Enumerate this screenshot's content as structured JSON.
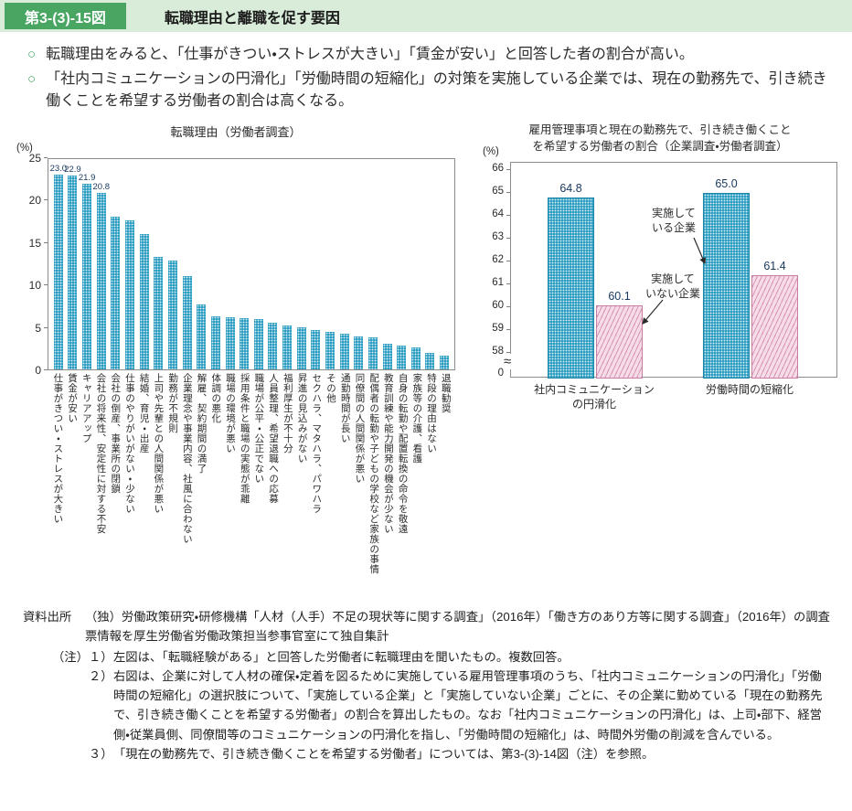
{
  "page": {
    "fig_no": "第3-(3)-15図",
    "fig_title": "転職理由と離職を促す要因",
    "bullet_marker": "○",
    "bullets": [
      "転職理由をみると、「仕事がきつい・ストレスが大きい」「賃金が安い」と回答した者の割合が高い。",
      "「社内コミュニケーションの円滑化」「労働時間の短縮化」の対策を実施している企業では、現在の勤務先で、引き続き働くことを希望する労働者の割合は高くなる。"
    ]
  },
  "colors": {
    "header_green": "#48a562",
    "header_bg": "#d8ecd9",
    "bar_teal": "#2e9ec2",
    "bar_pink_base": "#f6dce8",
    "bar_pink_line": "#d892b4",
    "value_label": "#17375e"
  },
  "chart_data": [
    {
      "type": "bar",
      "title": "転職理由（労働者調査）",
      "unit": "(%)",
      "ylim": [
        0,
        25
      ],
      "yticks": [
        0,
        5,
        10,
        15,
        20,
        25
      ],
      "grid": false,
      "value_labels_shown": 4,
      "categories": [
        "仕事がきつい・ストレスが大きい",
        "賃金が安い",
        "キャリアアップ",
        "会社の将来性、安定性に対する不安",
        "会社の倒産、事業所の閉鎖",
        "仕事のやりがいがない・少ない",
        "結婚、育児・出産",
        "上司や先輩との人間関係が悪い",
        "勤務が不規則",
        "企業理念や事業内容、社風に合わない",
        "解雇、契約期間の満了",
        "体調の悪化",
        "職場の環境が悪い",
        "採用条件と職場の実態が乖離",
        "職場が公平・公正でない",
        "人員整理、希望退職への応募",
        "福利厚生が不十分",
        "昇進の見込みがない",
        "セクハラ、マタハラ、パワハラ",
        "その他",
        "通勤時間が長い",
        "同僚間の人間関係が悪い",
        "配偶者の転勤や子どもの学校など家族の事情",
        "教育訓練や能力開発の機会が少ない",
        "自身の転勤や配置転換の命令を敬遠",
        "家族等の介護、看護",
        "特段の理由はない",
        "退職勧奨"
      ],
      "values": [
        23.0,
        22.9,
        21.9,
        20.8,
        18.0,
        17.6,
        15.9,
        13.3,
        12.8,
        11.0,
        7.7,
        6.2,
        6.1,
        6.0,
        5.9,
        5.5,
        5.2,
        5.0,
        4.6,
        4.4,
        4.2,
        3.9,
        3.8,
        3.0,
        2.8,
        2.6,
        1.9,
        1.6
      ]
    },
    {
      "type": "bar",
      "title": "雇用管理事項と現在の勤務先で、引き続き働くことを希望する労働者の割合（企業調査・労働者調査）",
      "title_lines": [
        "雇用管理事項と現在の勤務先で、引き続き働くこと",
        "を希望する労働者の割合（企業調査・労働者調査）"
      ],
      "unit": "(%)",
      "ylim": [
        58,
        66
      ],
      "yticks": [
        66,
        65,
        64,
        63,
        62,
        61,
        60,
        59,
        58
      ],
      "ybase_label": "0",
      "axis_break": true,
      "axis_break_symbol": "≈",
      "grid": false,
      "categories": [
        "社内コミュニケーション\nの円滑化",
        "労働時間の短縮化"
      ],
      "series": [
        {
          "name": "実施している企業",
          "values": [
            64.8,
            65.0
          ]
        },
        {
          "name": "実施していない企業",
          "values": [
            60.1,
            61.4
          ]
        }
      ],
      "annotations": [
        {
          "label": "実施している企業",
          "lines": [
            "実施して",
            "いる企業"
          ]
        },
        {
          "label": "実施していない企業",
          "lines": [
            "実施して",
            "いない企業"
          ]
        }
      ]
    }
  ],
  "source": {
    "label": "資料出所",
    "text": "（独）労働政策研究・研修機構「人材（人手）不足の現状等に関する調査」（2016年）「働き方のあり方等に関する調査」（2016年）の調査票情報を厚生労働省労働政策担当参事官室にて独自集計",
    "note_label": "（注）",
    "notes": [
      {
        "no": "１）",
        "text": "左図は、「転職経験がある」と回答した労働者に転職理由を聞いたもの。複数回答。"
      },
      {
        "no": "２）",
        "text": "右図は、企業に対して人材の確保・定着を図るために実施している雇用管理事項のうち、「社内コミュニケーションの円滑化」「労働時間の短縮化」の選択肢について、「実施している企業」と「実施していない企業」ごとに、その企業に勤めている「現在の勤務先で、引き続き働くことを希望する労働者」の割合を算出したもの。なお「社内コミュニケーションの円滑化」は、上司・部下、経営側・従業員側、同僚間等のコミュニケーションの円滑化を指し、「労働時間の短縮化」は、時間外労働の削減を含んでいる。"
      },
      {
        "no": "３）",
        "text": "「現在の勤務先で、引き続き働くことを希望する労働者」については、第3-(3)-14図（注）を参照。"
      }
    ]
  }
}
